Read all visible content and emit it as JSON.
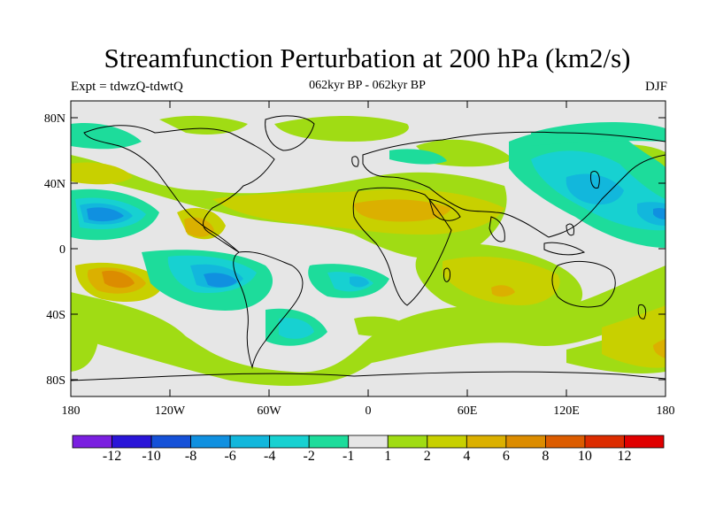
{
  "title": "Streamfunction Perturbation at 200 hPa (km2/s)",
  "subtitle_left": "Expt = tdwzQ-tdwtQ",
  "subtitle_center": "062kyr BP - 062kyr BP",
  "subtitle_right": "DJF",
  "map": {
    "projection": "cylindrical equidistant",
    "land_mask_color": "#e6e6e6",
    "lat_ticks": [
      "80N",
      "40N",
      "0",
      "40S",
      "80S"
    ],
    "lon_ticks": [
      "180",
      "120W",
      "60W",
      "0",
      "60E",
      "120E",
      "180"
    ]
  },
  "colorbar": {
    "colors": [
      "#7a1fe0",
      "#2a15d8",
      "#1551d8",
      "#1090e0",
      "#12b7dc",
      "#17d1d1",
      "#1ddc9b",
      "#e6e6e6",
      "#a0dc14",
      "#c8d000",
      "#dbb000",
      "#dc8c00",
      "#dc5c00",
      "#dc2c00",
      "#e00000"
    ],
    "labels": [
      "-12",
      "-10",
      "-8",
      "-6",
      "-4",
      "-2",
      "-1",
      "1",
      "2",
      "4",
      "6",
      "8",
      "10",
      "12"
    ]
  }
}
